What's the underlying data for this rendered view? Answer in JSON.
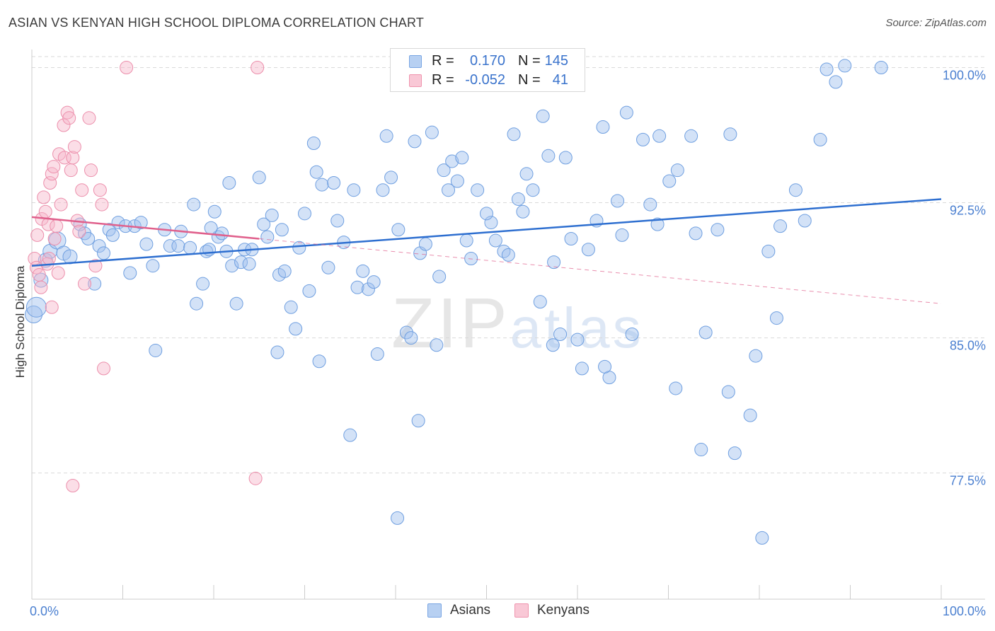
{
  "title": "ASIAN VS KENYAN HIGH SCHOOL DIPLOMA CORRELATION CHART",
  "source": "Source: ZipAtlas.com",
  "watermark": {
    "zip": "ZIP",
    "atlas": "atlas"
  },
  "legend_top": [
    {
      "r_label": "R =",
      "r_value": "0.170",
      "n_label": "N =",
      "n_value": "145",
      "fill": "#b7d0f2",
      "stroke": "#7aa6e3"
    },
    {
      "r_label": "R =",
      "r_value": "-0.052",
      "n_label": "N =",
      "n_value": "41",
      "fill": "#f9c8d6",
      "stroke": "#ef94ae"
    }
  ],
  "legend_bottom": [
    {
      "label": "Asians",
      "fill": "#b7d0f2",
      "stroke": "#7aa6e3"
    },
    {
      "label": "Kenyans",
      "fill": "#f9c8d6",
      "stroke": "#ef94ae"
    }
  ],
  "colors": {
    "asian_fill": "rgba(158,190,238,0.45)",
    "asian_stroke": "#6f9fe0",
    "asian_line": "#2e6fd0",
    "kenyan_fill": "rgba(246,182,202,0.45)",
    "kenyan_stroke": "#ec8eab",
    "kenyan_line": "#e0608c",
    "grid": "#d9d9d9",
    "axis_text": "#4a7fd0"
  },
  "chart_data": {
    "type": "scatter",
    "title": "ASIAN VS KENYAN HIGH SCHOOL DIPLOMA CORRELATION CHART",
    "xlabel": "",
    "ylabel": "High School Diploma",
    "xlim": [
      0,
      100
    ],
    "ylim": [
      70.5,
      101
    ],
    "x_tick_labels": [
      "0.0%",
      "100.0%"
    ],
    "y_ticks": [
      {
        "value": 77.5,
        "label": "77.5%"
      },
      {
        "value": 85.0,
        "label": "85.0%"
      },
      {
        "value": 92.5,
        "label": "92.5%"
      },
      {
        "value": 100.0,
        "label": "100.0%"
      }
    ],
    "grid": true,
    "legend_position": "top-center",
    "series": [
      {
        "name": "Asians",
        "trend": {
          "x0": 0,
          "y0": 89.0,
          "x1": 100,
          "y1": 92.7,
          "style": "solid"
        },
        "points": [
          [
            0.2,
            86.3,
            12
          ],
          [
            0.5,
            86.7,
            14
          ],
          [
            1.0,
            88.2,
            10
          ],
          [
            1.5,
            89.3,
            10
          ],
          [
            2.0,
            89.8,
            10
          ],
          [
            2.8,
            90.4,
            12
          ],
          [
            3.5,
            89.7,
            10
          ],
          [
            4.2,
            89.5,
            10
          ],
          [
            5.3,
            91.3,
            9
          ],
          [
            5.8,
            90.8,
            9
          ],
          [
            6.2,
            90.5,
            9
          ],
          [
            6.9,
            88.0,
            9
          ],
          [
            7.4,
            90.1,
            9
          ],
          [
            7.9,
            89.7,
            9
          ],
          [
            8.5,
            91.0,
            9
          ],
          [
            8.9,
            90.7,
            9
          ],
          [
            9.5,
            91.4,
            9
          ],
          [
            10.3,
            91.2,
            9
          ],
          [
            10.8,
            88.6,
            9
          ],
          [
            11.3,
            91.2,
            9
          ],
          [
            12.0,
            91.4,
            9
          ],
          [
            12.6,
            90.2,
            9
          ],
          [
            13.3,
            89.0,
            9
          ],
          [
            14.6,
            91.0,
            9
          ],
          [
            15.2,
            90.1,
            9
          ],
          [
            16.1,
            90.1,
            9
          ],
          [
            16.4,
            90.9,
            9
          ],
          [
            17.4,
            90.0,
            9
          ],
          [
            17.8,
            92.4,
            9
          ],
          [
            18.1,
            86.9,
            9
          ],
          [
            18.8,
            88.0,
            9
          ],
          [
            19.2,
            89.8,
            9
          ],
          [
            19.5,
            89.9,
            9
          ],
          [
            20.1,
            92.0,
            9
          ],
          [
            20.5,
            90.6,
            9
          ],
          [
            20.9,
            90.8,
            9
          ],
          [
            21.4,
            89.8,
            9
          ],
          [
            21.7,
            93.6,
            9
          ],
          [
            22.0,
            89.0,
            9
          ],
          [
            22.5,
            86.9,
            9
          ],
          [
            23.0,
            89.2,
            9
          ],
          [
            23.4,
            89.9,
            9
          ],
          [
            23.9,
            89.1,
            9
          ],
          [
            24.2,
            89.9,
            9
          ],
          [
            25.0,
            93.9,
            9
          ],
          [
            25.5,
            91.3,
            9
          ],
          [
            25.9,
            90.6,
            9
          ],
          [
            26.4,
            91.8,
            9
          ],
          [
            27.2,
            88.5,
            9
          ],
          [
            27.5,
            91.0,
            9
          ],
          [
            27.8,
            88.7,
            9
          ],
          [
            28.5,
            86.7,
            9
          ],
          [
            29.0,
            85.5,
            9
          ],
          [
            29.4,
            90.0,
            9
          ],
          [
            30.0,
            91.9,
            9
          ],
          [
            30.5,
            87.6,
            9
          ],
          [
            31.0,
            95.8,
            9
          ],
          [
            31.3,
            94.2,
            9
          ],
          [
            31.9,
            93.5,
            9
          ],
          [
            32.6,
            88.9,
            9
          ],
          [
            33.2,
            93.6,
            9
          ],
          [
            33.6,
            91.5,
            9
          ],
          [
            34.3,
            90.3,
            9
          ],
          [
            35.4,
            93.2,
            9
          ],
          [
            35.8,
            87.8,
            9
          ],
          [
            36.4,
            88.7,
            9
          ],
          [
            37.0,
            87.7,
            9
          ],
          [
            37.6,
            88.1,
            9
          ],
          [
            38.6,
            93.2,
            9
          ],
          [
            39.0,
            96.2,
            9
          ],
          [
            39.5,
            93.9,
            9
          ],
          [
            40.3,
            91.0,
            9
          ],
          [
            41.2,
            85.3,
            9
          ],
          [
            41.7,
            85.0,
            9
          ],
          [
            42.1,
            95.9,
            9
          ],
          [
            42.7,
            89.7,
            9
          ],
          [
            43.3,
            90.2,
            9
          ],
          [
            44.0,
            96.4,
            9
          ],
          [
            44.5,
            84.6,
            9
          ],
          [
            44.8,
            88.4,
            9
          ],
          [
            45.3,
            94.3,
            9
          ],
          [
            45.8,
            93.2,
            9
          ],
          [
            46.2,
            94.8,
            9
          ],
          [
            46.8,
            93.7,
            9
          ],
          [
            47.3,
            95.0,
            9
          ],
          [
            47.8,
            90.4,
            9
          ],
          [
            48.3,
            89.4,
            9
          ],
          [
            49.0,
            93.2,
            9
          ],
          [
            50.5,
            91.4,
            9
          ],
          [
            51.0,
            90.4,
            9
          ],
          [
            51.9,
            89.8,
            9
          ],
          [
            52.4,
            89.6,
            9
          ],
          [
            53.0,
            96.3,
            9
          ],
          [
            53.5,
            92.7,
            9
          ],
          [
            54.0,
            92.0,
            9
          ],
          [
            54.4,
            94.1,
            9
          ],
          [
            55.1,
            93.2,
            9
          ],
          [
            55.9,
            87.0,
            9
          ],
          [
            56.2,
            97.3,
            9
          ],
          [
            56.8,
            95.1,
            9
          ],
          [
            57.4,
            89.2,
            9
          ],
          [
            58.1,
            85.2,
            9
          ],
          [
            58.7,
            95.0,
            9
          ],
          [
            59.3,
            90.5,
            9
          ],
          [
            60.0,
            84.9,
            9
          ],
          [
            60.5,
            83.3,
            9
          ],
          [
            61.2,
            89.9,
            9
          ],
          [
            62.1,
            91.5,
            9
          ],
          [
            62.8,
            96.7,
            9
          ],
          [
            63.5,
            82.8,
            9
          ],
          [
            64.4,
            92.6,
            9
          ],
          [
            64.9,
            90.7,
            9
          ],
          [
            65.4,
            97.5,
            9
          ],
          [
            66.0,
            85.2,
            9
          ],
          [
            67.2,
            96.0,
            9
          ],
          [
            68.0,
            92.4,
            9
          ],
          [
            68.8,
            91.3,
            9
          ],
          [
            69.0,
            96.2,
            9
          ],
          [
            70.1,
            93.7,
            9
          ],
          [
            70.8,
            82.2,
            9
          ],
          [
            71.0,
            94.3,
            9
          ],
          [
            72.5,
            96.2,
            9
          ],
          [
            73.0,
            90.8,
            9
          ],
          [
            73.6,
            78.8,
            9
          ],
          [
            74.1,
            85.3,
            9
          ],
          [
            75.4,
            91.0,
            9
          ],
          [
            76.6,
            82.0,
            9
          ],
          [
            76.8,
            96.3,
            9
          ],
          [
            77.3,
            78.6,
            9
          ],
          [
            79.0,
            80.7,
            9
          ],
          [
            79.6,
            84.0,
            9
          ],
          [
            80.3,
            73.9,
            9
          ],
          [
            81.0,
            89.8,
            9
          ],
          [
            81.9,
            86.1,
            9
          ],
          [
            82.3,
            91.2,
            9
          ],
          [
            84.0,
            93.2,
            9
          ],
          [
            85.0,
            91.5,
            9
          ],
          [
            86.7,
            96.0,
            9
          ],
          [
            87.4,
            99.9,
            9
          ],
          [
            88.4,
            99.2,
            9
          ],
          [
            89.4,
            100.1,
            9
          ],
          [
            93.4,
            100.0,
            9
          ],
          [
            38.0,
            84.1,
            9
          ],
          [
            57.3,
            84.6,
            9
          ],
          [
            40.2,
            75.0,
            9
          ],
          [
            50.0,
            91.9,
            9
          ],
          [
            27.0,
            84.2,
            9
          ],
          [
            31.6,
            83.7,
            9
          ],
          [
            13.6,
            84.3,
            9
          ],
          [
            35.0,
            79.6,
            9
          ],
          [
            42.5,
            80.4,
            9
          ],
          [
            63.0,
            83.4,
            9
          ],
          [
            19.7,
            91.1,
            9
          ]
        ]
      },
      {
        "name": "Kenyans",
        "trend": {
          "x0": 0,
          "y0": 91.7,
          "x1": 100,
          "y1": 86.9,
          "solid_until_x": 25,
          "style": "solid-then-dashed"
        },
        "points": [
          [
            0.3,
            89.4,
            9
          ],
          [
            0.5,
            88.9,
            9
          ],
          [
            0.6,
            90.7,
            9
          ],
          [
            0.8,
            88.5,
            9
          ],
          [
            1.0,
            87.8,
            9
          ],
          [
            1.1,
            91.6,
            9
          ],
          [
            1.3,
            92.8,
            9
          ],
          [
            1.5,
            92.0,
            9
          ],
          [
            1.7,
            89.1,
            9
          ],
          [
            1.8,
            91.3,
            9
          ],
          [
            2.0,
            93.6,
            9
          ],
          [
            2.2,
            94.1,
            9
          ],
          [
            2.4,
            94.5,
            9
          ],
          [
            2.5,
            90.5,
            9
          ],
          [
            2.7,
            91.2,
            9
          ],
          [
            2.9,
            88.6,
            9
          ],
          [
            3.0,
            95.2,
            9
          ],
          [
            3.2,
            92.4,
            9
          ],
          [
            3.5,
            96.8,
            9
          ],
          [
            3.6,
            95.0,
            9
          ],
          [
            3.9,
            97.5,
            9
          ],
          [
            4.1,
            97.2,
            9
          ],
          [
            4.3,
            94.3,
            9
          ],
          [
            4.5,
            95.0,
            9
          ],
          [
            4.7,
            95.6,
            9
          ],
          [
            5.0,
            91.5,
            9
          ],
          [
            5.2,
            90.9,
            9
          ],
          [
            5.5,
            93.2,
            9
          ],
          [
            5.8,
            88.0,
            9
          ],
          [
            6.3,
            97.2,
            9
          ],
          [
            6.5,
            94.3,
            9
          ],
          [
            7.0,
            89.0,
            9
          ],
          [
            7.5,
            93.2,
            9
          ],
          [
            7.7,
            92.4,
            9
          ],
          [
            7.9,
            83.3,
            9
          ],
          [
            10.4,
            100.0,
            9
          ],
          [
            24.8,
            100.0,
            9
          ],
          [
            24.6,
            77.2,
            9
          ],
          [
            4.5,
            76.8,
            9
          ],
          [
            2.2,
            86.7,
            9
          ],
          [
            1.9,
            89.4,
            9
          ]
        ]
      }
    ]
  }
}
